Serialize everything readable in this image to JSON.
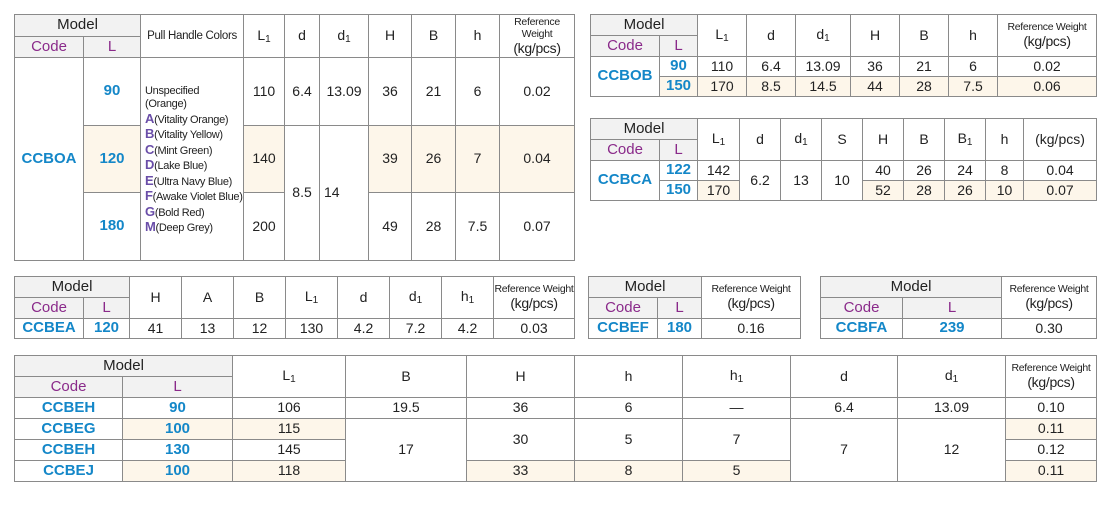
{
  "common": {
    "model": "Model",
    "code": "Code",
    "L": "L",
    "ref_weight": "Reference Weight",
    "unit": "(kg/pcs)",
    "pull_colors": "Pull Handle Colors"
  },
  "t1": {
    "headers": [
      "L",
      "d",
      "d",
      "H",
      "B",
      "h"
    ],
    "code": "CCBOA",
    "rows": [
      {
        "L": "90",
        "L1": "110",
        "d": "6.4",
        "d1": "13.09",
        "H": "36",
        "B": "21",
        "h": "6",
        "w": "0.02"
      },
      {
        "L": "120",
        "L1": "140",
        "H": "39",
        "B": "26",
        "h": "7",
        "w": "0.04"
      },
      {
        "L": "180",
        "L1": "200",
        "H": "49",
        "B": "28",
        "h": "7.5",
        "w": "0.07"
      }
    ],
    "d_shared": "8.5",
    "d1_shared": "14",
    "colors": [
      {
        "key": "",
        "text": "Unspecified (Orange)"
      },
      {
        "key": "A",
        "text": "(Vitality Orange)"
      },
      {
        "key": "B",
        "text": "(Vitality Yellow)"
      },
      {
        "key": "C",
        "text": "(Mint Green)"
      },
      {
        "key": "D",
        "text": "(Lake Blue)"
      },
      {
        "key": "E",
        "text": "(Ultra Navy Blue)"
      },
      {
        "key": "F",
        "text": "(Awake Violet Blue)"
      },
      {
        "key": "G",
        "text": "(Bold Red)"
      },
      {
        "key": "M",
        "text": "(Deep Grey)"
      }
    ]
  },
  "t2": {
    "headers": [
      "L",
      "d",
      "d",
      "H",
      "B",
      "h"
    ],
    "code": "CCBOB",
    "rows": [
      {
        "L": "90",
        "L1": "110",
        "d": "6.4",
        "d1": "13.09",
        "H": "36",
        "B": "21",
        "h": "6",
        "w": "0.02"
      },
      {
        "L": "150",
        "L1": "170",
        "d": "8.5",
        "d1": "14.5",
        "H": "44",
        "B": "28",
        "h": "7.5",
        "w": "0.06"
      }
    ]
  },
  "t3": {
    "headers": [
      "L",
      "d",
      "d",
      "S",
      "H",
      "B",
      "B",
      "h"
    ],
    "code": "CCBCA",
    "rows": [
      {
        "L": "122",
        "L1": "142",
        "H": "40",
        "B": "26",
        "B1": "24",
        "h": "8",
        "w": "0.04"
      },
      {
        "L": "150",
        "L1": "170",
        "H": "52",
        "B": "28",
        "B1": "26",
        "h": "10",
        "w": "0.07"
      }
    ],
    "d": "6.2",
    "d1": "13",
    "S": "10"
  },
  "t4": {
    "headers": [
      "H",
      "A",
      "B",
      "L",
      "d",
      "d",
      "h"
    ],
    "code": "CCBEA",
    "row": {
      "L": "120",
      "H": "41",
      "A": "13",
      "B": "12",
      "L1": "130",
      "d": "4.2",
      "d1": "7.2",
      "h1": "4.2",
      "w": "0.03"
    }
  },
  "t5": {
    "code": "CCBEF",
    "L": "180",
    "w": "0.16"
  },
  "t6": {
    "code": "CCBFA",
    "L": "239",
    "w": "0.30"
  },
  "t7": {
    "headers": [
      "L",
      "B",
      "H",
      "h",
      "h",
      "d",
      "d"
    ],
    "rows": [
      {
        "code": "CCBEH",
        "L": "90",
        "L1": "106",
        "B": "19.5",
        "H": "36",
        "h": "6",
        "h1": "—",
        "d": "6.4",
        "d1": "13.09",
        "w": "0.10"
      },
      {
        "code": "CCBEG",
        "L": "100",
        "L1": "115",
        "w": "0.11"
      },
      {
        "code": "CCBEH",
        "L": "130",
        "L1": "145",
        "w": "0.12"
      },
      {
        "code": "CCBEJ",
        "L": "100",
        "L1": "118",
        "H": "33",
        "h": "8",
        "h1": "5",
        "w": "0.11"
      }
    ],
    "B_shared": "17",
    "H_shared": "30",
    "h_shared": "5",
    "h1_shared": "7",
    "d_shared": "7",
    "d1_shared": "12"
  }
}
